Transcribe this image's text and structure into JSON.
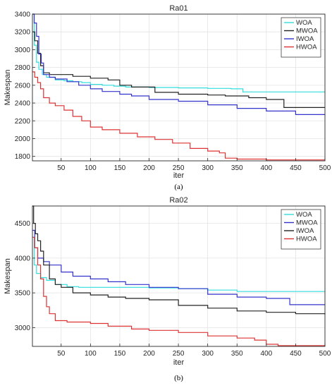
{
  "chart_data": [
    {
      "type": "line",
      "title": "Ra01",
      "caption": "(a)",
      "xlabel": "iter",
      "ylabel": "Makespan",
      "xlim": [
        1,
        500
      ],
      "ylim": [
        1750,
        3400
      ],
      "xticks": [
        50,
        100,
        150,
        200,
        250,
        300,
        350,
        400,
        450,
        500
      ],
      "yticks": [
        1800,
        2000,
        2200,
        2400,
        2600,
        2800,
        3000,
        3200,
        3400
      ],
      "grid": true,
      "legend_position": "top-right",
      "series": [
        {
          "name": "WOA",
          "color": "#33dddd",
          "x": [
            1,
            4,
            8,
            12,
            18,
            25,
            40,
            55,
            70,
            85,
            100,
            120,
            140,
            160,
            200,
            250,
            300,
            340,
            360,
            500
          ],
          "y": [
            3400,
            3050,
            2860,
            2780,
            2720,
            2690,
            2660,
            2650,
            2640,
            2630,
            2610,
            2600,
            2590,
            2580,
            2575,
            2570,
            2565,
            2560,
            2525,
            2525
          ]
        },
        {
          "name": "MWOA",
          "color": "#222222",
          "x": [
            1,
            5,
            10,
            15,
            20,
            30,
            50,
            70,
            100,
            130,
            150,
            170,
            210,
            250,
            300,
            330,
            370,
            400,
            430,
            500
          ],
          "y": [
            3200,
            3100,
            2960,
            2820,
            2740,
            2720,
            2720,
            2700,
            2680,
            2660,
            2600,
            2580,
            2520,
            2500,
            2490,
            2480,
            2460,
            2440,
            2350,
            2350
          ]
        },
        {
          "name": "IWOA",
          "color": "#3333cc",
          "x": [
            1,
            4,
            8,
            12,
            16,
            20,
            30,
            40,
            60,
            80,
            100,
            120,
            150,
            170,
            200,
            250,
            300,
            350,
            400,
            450,
            500
          ],
          "y": [
            3400,
            3300,
            3150,
            2950,
            2850,
            2720,
            2690,
            2670,
            2640,
            2600,
            2560,
            2530,
            2500,
            2480,
            2440,
            2420,
            2380,
            2340,
            2310,
            2270,
            2270
          ]
        },
        {
          "name": "HWOA",
          "color": "#dd3333",
          "x": [
            1,
            5,
            10,
            15,
            20,
            30,
            40,
            55,
            70,
            85,
            100,
            120,
            150,
            180,
            210,
            240,
            270,
            300,
            320,
            330,
            350,
            400,
            500
          ],
          "y": [
            2750,
            2690,
            2630,
            2560,
            2460,
            2400,
            2370,
            2320,
            2250,
            2200,
            2130,
            2100,
            2060,
            2020,
            1990,
            1950,
            1890,
            1860,
            1840,
            1780,
            1770,
            1760,
            1760
          ]
        }
      ]
    },
    {
      "type": "line",
      "title": "Ra02",
      "caption": "(b)",
      "xlabel": "iter",
      "ylabel": "Makespan",
      "xlim": [
        1,
        500
      ],
      "ylim": [
        2730,
        4750
      ],
      "xticks": [
        50,
        100,
        150,
        200,
        250,
        300,
        350,
        400,
        450,
        500
      ],
      "yticks": [
        3000,
        3500,
        4000,
        4500
      ],
      "grid": true,
      "legend_position": "top-right",
      "series": [
        {
          "name": "WOA",
          "color": "#33dddd",
          "x": [
            1,
            4,
            8,
            15,
            25,
            40,
            60,
            80,
            100,
            150,
            200,
            250,
            300,
            350,
            400,
            450,
            500
          ],
          "y": [
            4300,
            3900,
            3780,
            3720,
            3680,
            3620,
            3590,
            3580,
            3580,
            3580,
            3570,
            3560,
            3540,
            3520,
            3520,
            3520,
            3520
          ]
        },
        {
          "name": "MWOA",
          "color": "#3333cc",
          "x": [
            1,
            5,
            10,
            20,
            30,
            50,
            70,
            100,
            130,
            160,
            200,
            250,
            300,
            350,
            400,
            440,
            500
          ],
          "y": [
            4400,
            4150,
            4000,
            3950,
            3900,
            3800,
            3740,
            3700,
            3660,
            3620,
            3580,
            3560,
            3480,
            3440,
            3420,
            3330,
            3330
          ]
        },
        {
          "name": "IWOA",
          "color": "#222222",
          "x": [
            1,
            3,
            6,
            10,
            15,
            20,
            30,
            40,
            50,
            70,
            100,
            130,
            160,
            200,
            250,
            300,
            350,
            400,
            450,
            500
          ],
          "y": [
            4750,
            4500,
            4350,
            4250,
            4100,
            3900,
            3700,
            3620,
            3580,
            3500,
            3470,
            3440,
            3420,
            3400,
            3320,
            3280,
            3240,
            3220,
            3200,
            3190
          ]
        },
        {
          "name": "HWOA",
          "color": "#dd3333",
          "x": [
            1,
            5,
            10,
            15,
            20,
            25,
            30,
            40,
            60,
            100,
            130,
            170,
            200,
            250,
            300,
            350,
            380,
            400,
            420,
            500
          ],
          "y": [
            4300,
            4150,
            3900,
            3700,
            3450,
            3300,
            3200,
            3100,
            3080,
            3060,
            3020,
            2980,
            2960,
            2930,
            2880,
            2850,
            2820,
            2760,
            2740,
            2740
          ]
        }
      ]
    }
  ]
}
